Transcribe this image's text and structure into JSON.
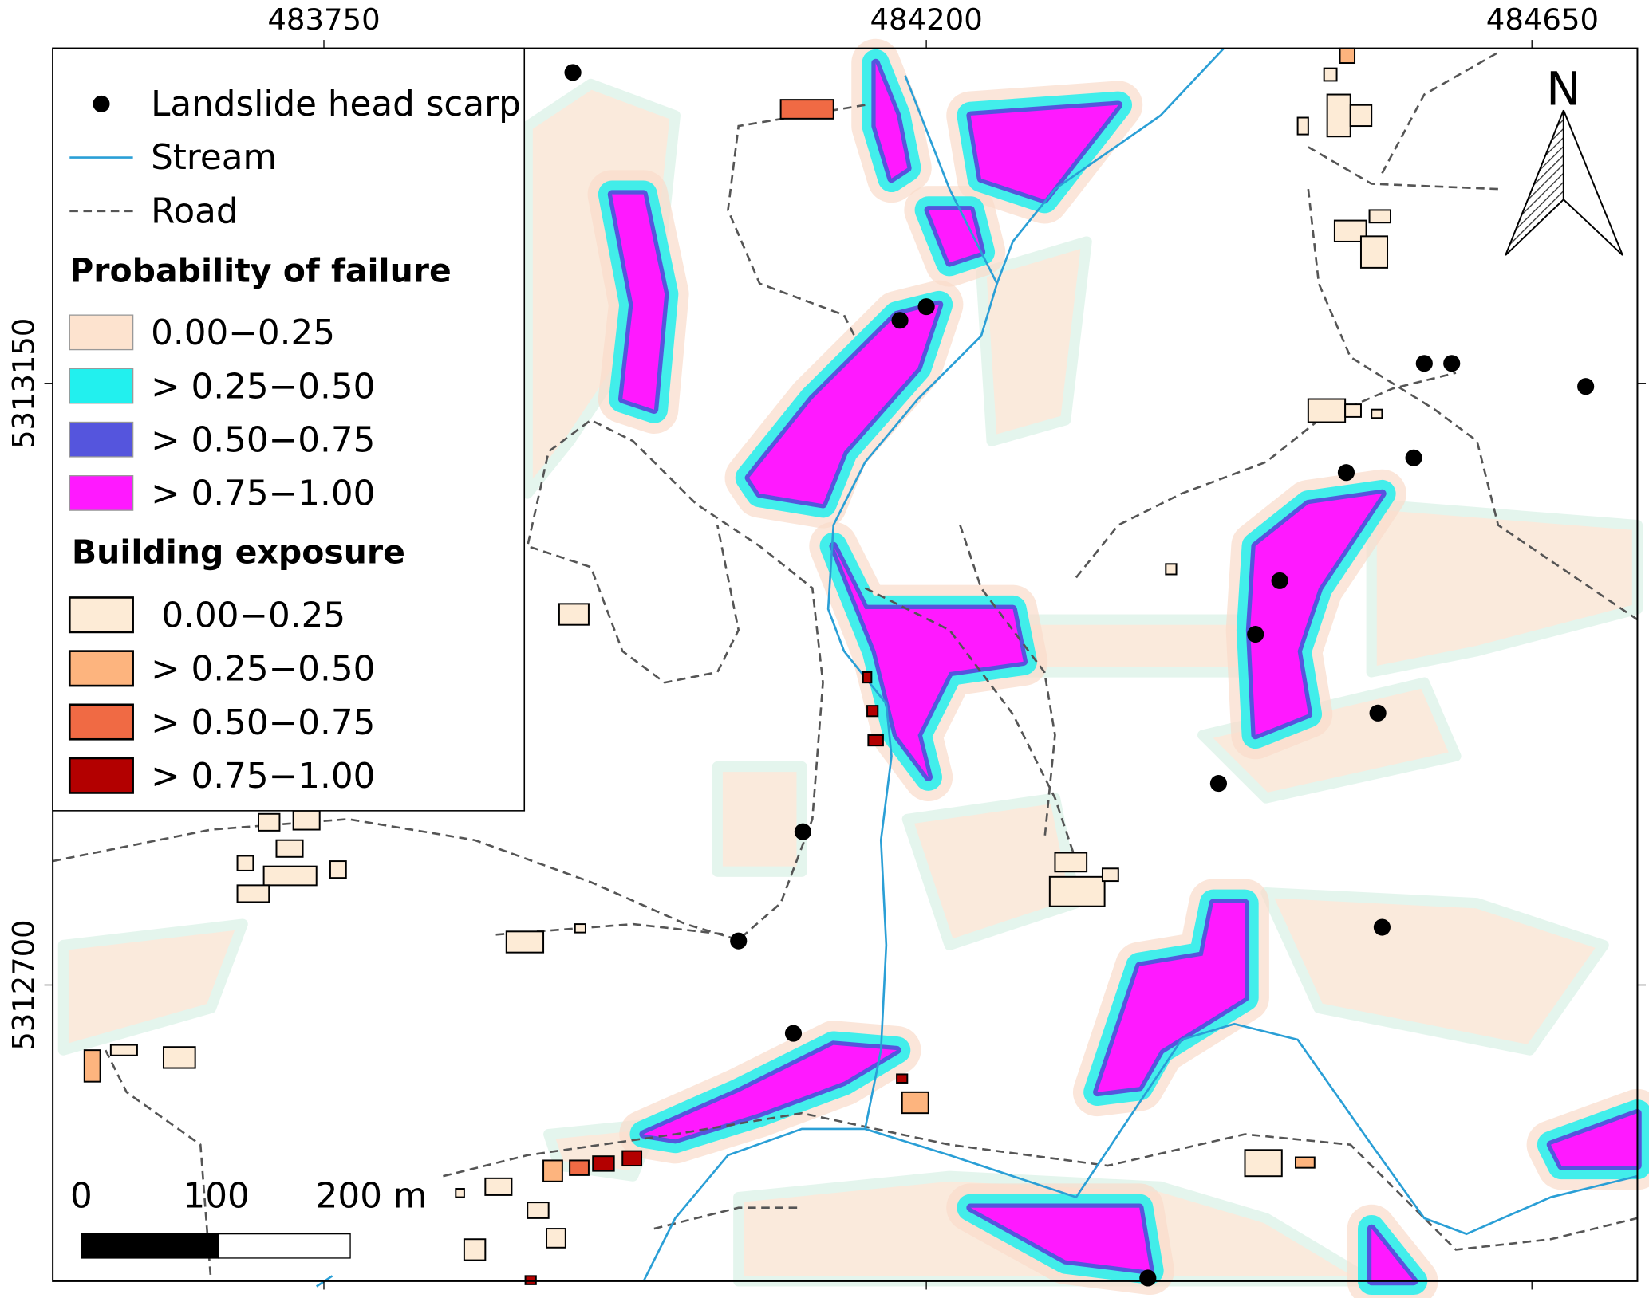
{
  "map": {
    "x_ticks": [
      483750,
      484200,
      484650
    ],
    "y_ticks": [
      5313150,
      5312700
    ],
    "north_label": "N",
    "legend": {
      "symbols": [
        "Landslide head scarp",
        "Stream",
        "Road"
      ],
      "probability_title": "Probability of failure",
      "probability_classes": [
        "0.00−0.25",
        "> 0.25−0.50",
        "> 0.50−0.75",
        "> 0.75−1.00"
      ],
      "exposure_title": "Building exposure",
      "exposure_classes": [
        "0.00−0.25",
        "> 0.25−0.50",
        "> 0.50−0.75",
        "> 0.75−1.00"
      ]
    },
    "scale_bar": [
      "0",
      "100",
      "200 m"
    ]
  }
}
